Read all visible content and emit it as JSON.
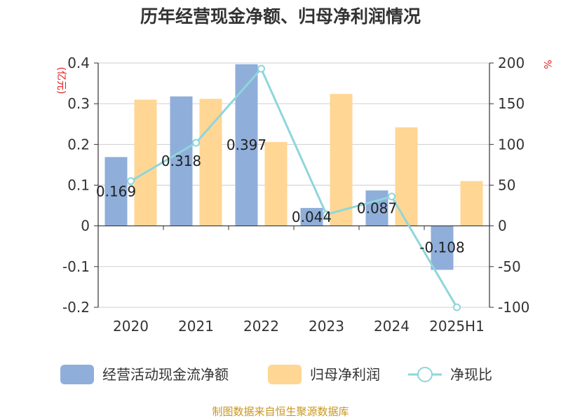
{
  "chart_data": {
    "type": "bar",
    "title": "历年经营现金净额、归母净利润情况",
    "categories": [
      "2020",
      "2021",
      "2022",
      "2023",
      "2024",
      "2025H1"
    ],
    "series": [
      {
        "name": "经营活动现金流净额",
        "type": "bar",
        "axis": "left",
        "color": "#8FAEDA",
        "values": [
          0.169,
          0.318,
          0.397,
          0.044,
          0.087,
          -0.108
        ],
        "labels": [
          "0.169",
          "0.318",
          "0.397",
          "0.044",
          "0.087",
          "-0.108"
        ]
      },
      {
        "name": "归母净利润",
        "type": "bar",
        "axis": "left",
        "color": "#FFD694",
        "values": [
          0.31,
          0.312,
          0.206,
          0.324,
          0.242,
          0.11
        ]
      },
      {
        "name": "净现比",
        "type": "line",
        "axis": "right",
        "color": "#8ED6DA",
        "values": [
          55,
          102,
          193,
          14,
          36,
          -100
        ]
      }
    ],
    "y_left": {
      "unit": "(亿元)",
      "ylim": [
        -0.2,
        0.4
      ],
      "ticks": [
        {
          "value": 0.4,
          "label": "0.4"
        },
        {
          "value": 0.3,
          "label": "0.3"
        },
        {
          "value": 0.2,
          "label": "0.2"
        },
        {
          "value": 0.1,
          "label": "0.1"
        },
        {
          "value": 0,
          "label": "0"
        },
        {
          "value": -0.1,
          "label": "-0.1"
        },
        {
          "value": -0.2,
          "label": "-0.2"
        }
      ]
    },
    "y_right": {
      "unit": "%",
      "ylim": [
        -100,
        200
      ],
      "ticks": [
        {
          "value": 200,
          "label": "200"
        },
        {
          "value": 150,
          "label": "150"
        },
        {
          "value": 100,
          "label": "100"
        },
        {
          "value": 50,
          "label": "50"
        },
        {
          "value": 0,
          "label": "0"
        },
        {
          "value": -50,
          "label": "-50"
        },
        {
          "value": -100,
          "label": "-100"
        }
      ]
    },
    "grid": true,
    "legend": "bottom",
    "source": "制图数据来自恒生聚源数据库"
  }
}
